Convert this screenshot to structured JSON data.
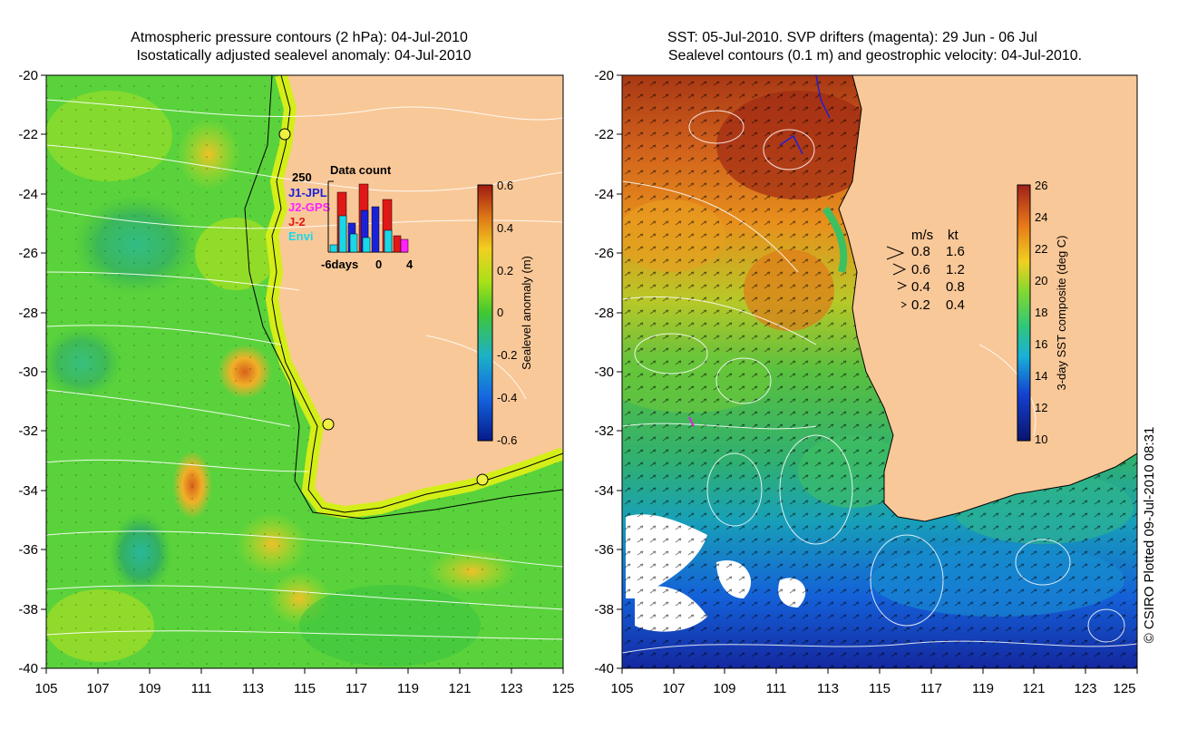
{
  "left_panel": {
    "title_line1": "Atmospheric pressure contours (2 hPa): 04-Jul-2010",
    "title_line2": "Isostatically adjusted sealevel anomaly: 04-Jul-2010",
    "lat_ticks": [
      "-20",
      "-22",
      "-24",
      "-26",
      "-28",
      "-30",
      "-32",
      "-34",
      "-36",
      "-38",
      "-40"
    ],
    "lon_ticks": [
      "105",
      "107",
      "109",
      "111",
      "113",
      "115",
      "117",
      "119",
      "121",
      "123",
      "125"
    ],
    "colorbar": {
      "label": "Sealevel anomaly (m)",
      "ticks": [
        "0.6",
        "0.4",
        "0.2",
        "0",
        "-0.2",
        "-0.4",
        "-0.6"
      ]
    },
    "inset": {
      "title": "Data count",
      "ymax_label": "250",
      "x_labels": [
        "-6days",
        "0",
        "4"
      ],
      "legend": [
        {
          "label": "J1-JPL",
          "color": "#1a22d8"
        },
        {
          "label": "J2-GPS",
          "color": "#ff22ff"
        },
        {
          "label": "J-2",
          "color": "#e01818"
        },
        {
          "label": "Envi",
          "color": "#18d8e8"
        }
      ]
    }
  },
  "right_panel": {
    "title_line1": "SST: 05-Jul-2010. SVP drifters (magenta): 29 Jun - 06 Jul",
    "title_line2": "Sealevel contours (0.1 m) and geostrophic velocity: 04-Jul-2010.",
    "lat_ticks": [
      "-20",
      "-22",
      "-24",
      "-26",
      "-28",
      "-30",
      "-32",
      "-34",
      "-36",
      "-38",
      "-40"
    ],
    "lon_ticks": [
      "105",
      "107",
      "109",
      "111",
      "113",
      "115",
      "117",
      "119",
      "121",
      "123",
      "125"
    ],
    "colorbar": {
      "label": "3-day SST composite (deg C)",
      "ticks": [
        "26",
        "24",
        "22",
        "20",
        "18",
        "16",
        "14",
        "12",
        "10"
      ]
    },
    "velocity_legend": {
      "header_ms": "m/s",
      "header_kt": "kt",
      "rows": [
        {
          "ms": "0.8",
          "kt": "1.6"
        },
        {
          "ms": "0.6",
          "kt": "1.2"
        },
        {
          "ms": "0.4",
          "kt": "0.8"
        },
        {
          "ms": "0.2",
          "kt": "0.4"
        }
      ]
    }
  },
  "credit": "© CSIRO Plotted 09-Jul-2010 08:31",
  "colors": {
    "land": "#f9c898",
    "coast_band": "#d2ee18",
    "ocean_green": "#5ed23c",
    "high_anomaly": "#d87018",
    "sst_warm": "#b83a14",
    "sst_cool": "#1434c0"
  }
}
